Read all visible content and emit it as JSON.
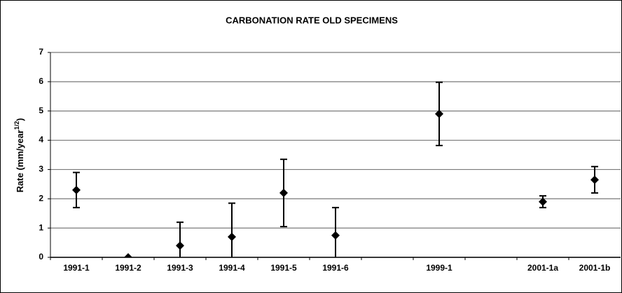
{
  "chart_data": {
    "type": "errorbar",
    "title": "CARBONATION RATE OLD SPECIMENS",
    "ylabel": {
      "text": "Rate (mm/year",
      "superscript": "1/2",
      "suffix": ")"
    },
    "categories": [
      "1991-1",
      "1991-2",
      "1991-3",
      "1991-4",
      "1991-5",
      "1991-6",
      null,
      "1999-1",
      null,
      "2001-1a",
      "2001-1b"
    ],
    "values": [
      2.3,
      0,
      0.4,
      0.7,
      2.2,
      0.75,
      null,
      4.9,
      null,
      1.9,
      2.65
    ],
    "errors": [
      0.6,
      0,
      0.8,
      1.15,
      1.15,
      0.95,
      null,
      1.08,
      null,
      0.2,
      0.45
    ],
    "color": "#000000",
    "ylim": [
      0,
      7
    ],
    "yticks": [
      0,
      1,
      2,
      3,
      4,
      5,
      6,
      7
    ],
    "grid": true
  }
}
